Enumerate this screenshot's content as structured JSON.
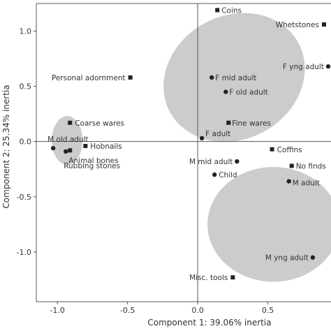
{
  "chart_data": {
    "type": "scatter",
    "title": "",
    "xlabel": "Component 1: 39.06% inertia",
    "ylabel": "Component 2: 25.34% inertia",
    "xlim": [
      -1.15,
      0.95
    ],
    "ylim": [
      -1.45,
      1.25
    ],
    "x_ticks": [
      {
        "value": -1.0,
        "label": "-1.0"
      },
      {
        "value": -0.5,
        "label": "-0.5"
      },
      {
        "value": 0.0,
        "label": "0.0"
      },
      {
        "value": 0.5,
        "label": "0.5"
      }
    ],
    "y_ticks": [
      {
        "value": -1.0,
        "label": "-1.0"
      },
      {
        "value": -0.5,
        "label": "-0.5"
      },
      {
        "value": 0.0,
        "label": "0.0"
      },
      {
        "value": 0.5,
        "label": "0.5"
      },
      {
        "value": 1.0,
        "label": "1.0"
      }
    ],
    "grid": false,
    "reference_lines": {
      "x": 0,
      "y": 0
    },
    "colors": {
      "ellipse_fill": "#cccccc",
      "marker": "#222222",
      "axis": "#555555",
      "text": "#333333"
    },
    "groups": [
      {
        "cx": 0.26,
        "cy": 0.58,
        "rx": 0.52,
        "ry": 0.56,
        "angle": -28
      },
      {
        "cx": -0.93,
        "cy": 0.01,
        "rx": 0.11,
        "ry": 0.22,
        "angle": 0
      },
      {
        "cx": 0.54,
        "cy": -0.75,
        "rx": 0.47,
        "ry": 0.52,
        "angle": 0
      }
    ],
    "series": [
      {
        "marker": "square",
        "points": [
          {
            "label": "Coins",
            "x": 0.14,
            "y": 1.19
          },
          {
            "label": "Whetstones",
            "x": 0.9,
            "y": 1.06
          },
          {
            "label": "Personal adornment",
            "x": -0.48,
            "y": 0.58
          },
          {
            "label": "Coarse wares",
            "x": -0.91,
            "y": 0.17
          },
          {
            "label": "Hobnails",
            "x": -0.8,
            "y": -0.04
          },
          {
            "label": "Animal bones",
            "x": -0.91,
            "y": -0.08
          },
          {
            "label": "Fine wares",
            "x": 0.22,
            "y": 0.17
          },
          {
            "label": "Coffins",
            "x": 0.53,
            "y": -0.07
          },
          {
            "label": "No finds",
            "x": 0.67,
            "y": -0.22
          },
          {
            "label": "Misc. tools",
            "x": 0.25,
            "y": -1.23
          }
        ]
      },
      {
        "marker": "circle",
        "points": [
          {
            "label": "F yng adult",
            "x": 0.93,
            "y": 0.68
          },
          {
            "label": "F mid adult",
            "x": 0.1,
            "y": 0.58
          },
          {
            "label": "F old adult",
            "x": 0.2,
            "y": 0.45
          },
          {
            "label": "F adult",
            "x": 0.03,
            "y": 0.03
          },
          {
            "label": "M old adult",
            "x": -1.03,
            "y": -0.06
          },
          {
            "label": "Rubbing stones",
            "x": -0.94,
            "y": -0.09
          },
          {
            "label": "M mid adult",
            "x": 0.28,
            "y": -0.18
          },
          {
            "label": "Child",
            "x": 0.12,
            "y": -0.3
          },
          {
            "label": "M adult",
            "x": 0.65,
            "y": -0.36
          },
          {
            "label": "M yng adult",
            "x": 0.82,
            "y": -1.05
          }
        ]
      }
    ]
  }
}
